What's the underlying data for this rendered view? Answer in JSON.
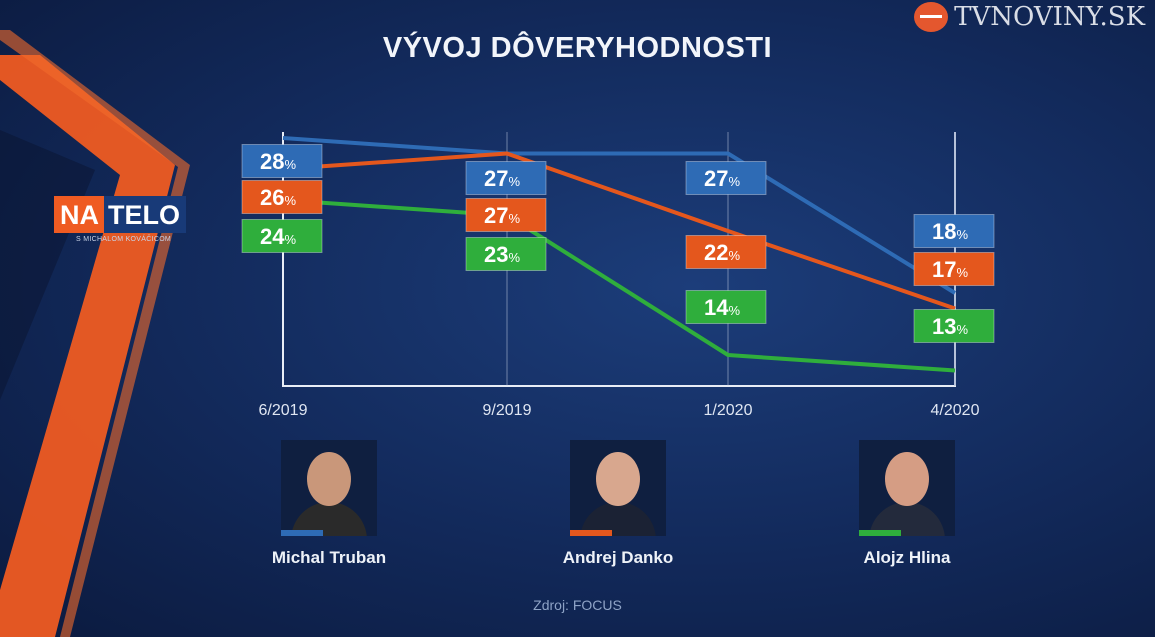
{
  "header": {
    "brand_text": "TVNOVINY.SK",
    "show_logo_left": "NA",
    "show_logo_right": "TELO",
    "show_logo_subtitle": "S MICHALOM KOVÁČICOM"
  },
  "chart_data": {
    "type": "line",
    "title": "VÝVOJ DÔVERYHODNOSTI",
    "xlabel": "",
    "ylabel": "",
    "unit": "%",
    "categories": [
      "6/2019",
      "9/2019",
      "1/2020",
      "4/2020"
    ],
    "series": [
      {
        "name": "Michal Truban",
        "color": "#2e6bb5",
        "values": [
          28,
          27,
          27,
          18
        ]
      },
      {
        "name": "Andrej Danko",
        "color": "#e4571d",
        "values": [
          26,
          27,
          22,
          17
        ]
      },
      {
        "name": "Alojz Hlina",
        "color": "#2fae3c",
        "values": [
          24,
          23,
          14,
          13
        ]
      }
    ],
    "grid": "vertical",
    "legend": "bottom"
  },
  "legend": {
    "persons": [
      {
        "name": "Michal Truban",
        "color": "#2e6bb5",
        "skin": "#c9977a",
        "suit": "#2a2a2a"
      },
      {
        "name": "Andrej Danko",
        "color": "#e4571d",
        "skin": "#d8a78e",
        "suit": "#1b2234"
      },
      {
        "name": "Alojz Hlina",
        "color": "#2fae3c",
        "skin": "#d59d84",
        "suit": "#232a3c"
      }
    ]
  },
  "footer": {
    "source": "Zdroj: FOCUS"
  }
}
